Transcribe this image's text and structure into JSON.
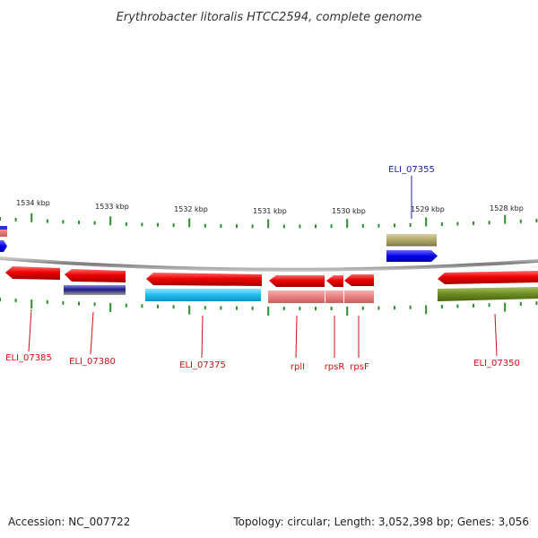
{
  "title": "Erythrobacter litoralis HTCC2594, complete genome",
  "footer": {
    "accession": "Accession: NC_007722",
    "summary": "Topology: circular; Length: 3,052,398 bp; Genes: 3,056"
  },
  "colors": {
    "backbone": "#8a8a8a",
    "tick": "#2e8b2e",
    "label_red": "#cc1111",
    "label_blue": "#1f1fb0"
  },
  "scale_labels": [
    "1534 kbp",
    "1533 kbp",
    "1532 kbp",
    "1531 kbp",
    "1530 kbp",
    "1529 kbp",
    "1528 kbp"
  ],
  "genes": [
    {
      "label": "ELI_07385",
      "color": "red"
    },
    {
      "label": "ELI_07380",
      "color": "red"
    },
    {
      "label": "ELI_07375",
      "color": "red"
    },
    {
      "label": "rplI",
      "color": "red"
    },
    {
      "label": "rpsR",
      "color": "red"
    },
    {
      "label": "rpsF",
      "color": "red"
    },
    {
      "label": "ELI_07355",
      "color": "blue"
    },
    {
      "label": "ELI_07350",
      "color": "red"
    }
  ]
}
